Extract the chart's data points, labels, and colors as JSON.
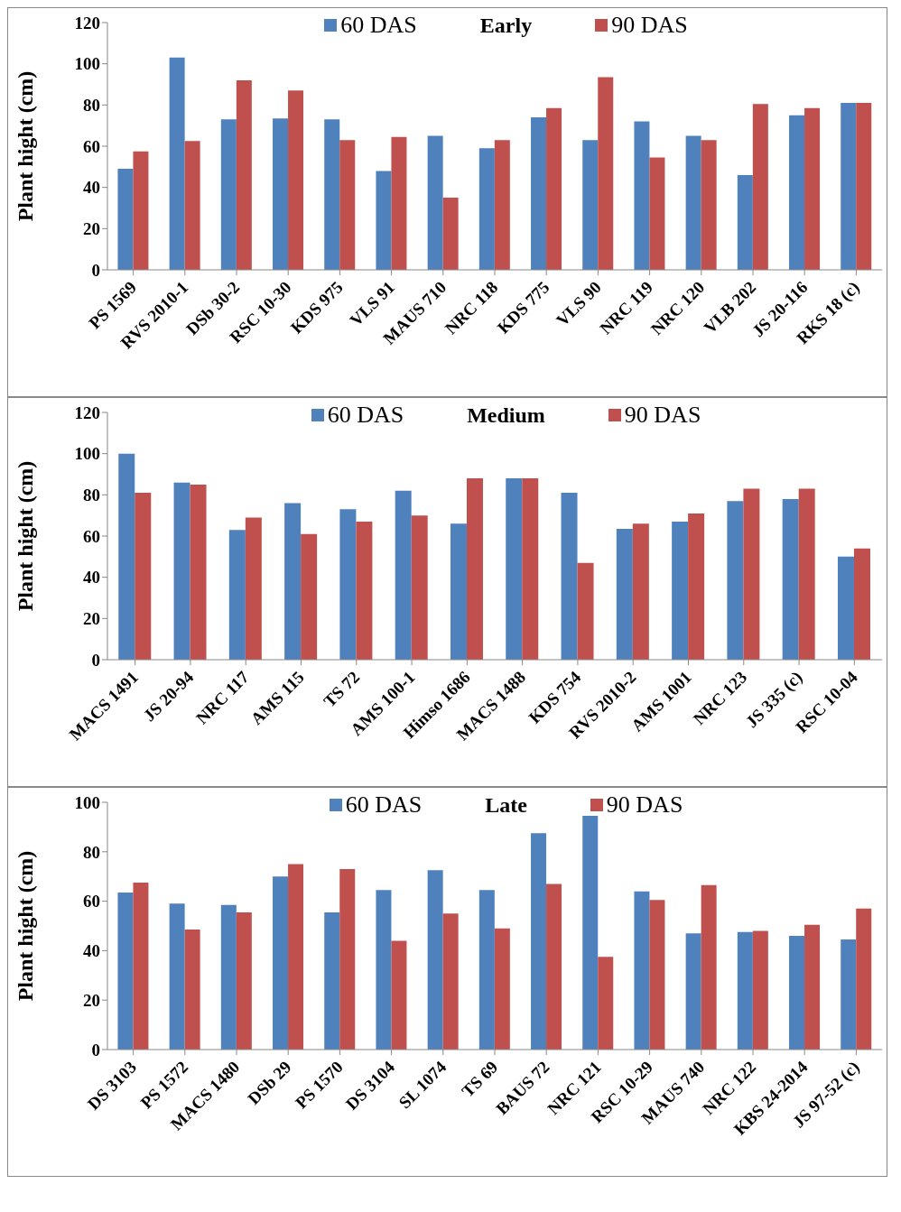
{
  "chart_data": [
    {
      "type": "bar",
      "title": "Early",
      "ylabel": "Plant hight (cm)",
      "categories": [
        "PS 1569",
        "RVS 2010-1",
        "DSb 30-2",
        "RSC 10-30",
        "KDS 975",
        "VLS 91",
        "MAUS 710",
        "NRC 118",
        "KDS 775",
        "VLS 90",
        "NRC 119",
        "NRC 120",
        "VLB 202",
        "JS 20-116",
        "RKS 18 (c)"
      ],
      "series": [
        {
          "name": "60 DAS",
          "color": "#4f81bd",
          "values": [
            49,
            103,
            73,
            73.5,
            73,
            48,
            65,
            59,
            74,
            63,
            72,
            65,
            46,
            75,
            81
          ]
        },
        {
          "name": "90 DAS",
          "color": "#c0504d",
          "values": [
            57.5,
            62.5,
            92,
            87,
            63,
            64.5,
            35,
            63,
            78.5,
            93.5,
            54.5,
            63,
            80.5,
            78.5,
            81
          ]
        }
      ],
      "ylim": [
        0,
        120
      ],
      "yticks": [
        0,
        20,
        40,
        60,
        80,
        100,
        120
      ],
      "grid": false,
      "legend": "top"
    },
    {
      "type": "bar",
      "title": "Medium",
      "ylabel": "Plant hight (cm)",
      "categories": [
        "MACS 1491",
        "JS 20-94",
        "NRC 117",
        "AMS 115",
        "TS 72",
        "AMS 100-1",
        "Himso 1686",
        "MACS 1488",
        "KDS 754",
        "RVS 2010-2",
        "AMS 1001",
        "NRC 123",
        "JS 335 (c)",
        "RSC 10-04"
      ],
      "series": [
        {
          "name": "60 DAS",
          "color": "#4f81bd",
          "values": [
            100,
            86,
            63,
            76,
            73,
            82,
            66,
            88,
            81,
            63.5,
            67,
            77,
            78,
            50
          ]
        },
        {
          "name": "90 DAS",
          "color": "#c0504d",
          "values": [
            81,
            85,
            69,
            61,
            67,
            70,
            88,
            88,
            47,
            66,
            71,
            83,
            83,
            54
          ]
        }
      ],
      "ylim": [
        0,
        120
      ],
      "yticks": [
        0,
        20,
        40,
        60,
        80,
        100,
        120
      ],
      "grid": false,
      "legend": "top"
    },
    {
      "type": "bar",
      "title": "Late",
      "ylabel": "Plant hight (cm)",
      "categories": [
        "DS 3103",
        "PS 1572",
        "MACS 1480",
        "DSb 29",
        "PS 1570",
        "DS 3104",
        "SL 1074",
        "TS 69",
        "BAUS 72",
        "NRC 121",
        "RSC 10-29",
        "MAUS 740",
        "NRC 122",
        "KBS 24-2014",
        "JS 97-52 (c)"
      ],
      "series": [
        {
          "name": "60 DAS",
          "color": "#4f81bd",
          "values": [
            63.5,
            59,
            58.5,
            70,
            55.5,
            64.5,
            72.5,
            64.5,
            87.5,
            94.5,
            64,
            47,
            47.5,
            46,
            44.5
          ]
        },
        {
          "name": "90 DAS",
          "color": "#c0504d",
          "values": [
            67.5,
            48.5,
            55.5,
            75,
            73,
            44,
            55,
            49,
            67,
            37.5,
            60.5,
            66.5,
            48,
            50.5,
            57
          ]
        }
      ],
      "ylim": [
        0,
        100
      ],
      "yticks": [
        0,
        20,
        40,
        60,
        80,
        100
      ],
      "grid": false,
      "legend": "top"
    }
  ]
}
